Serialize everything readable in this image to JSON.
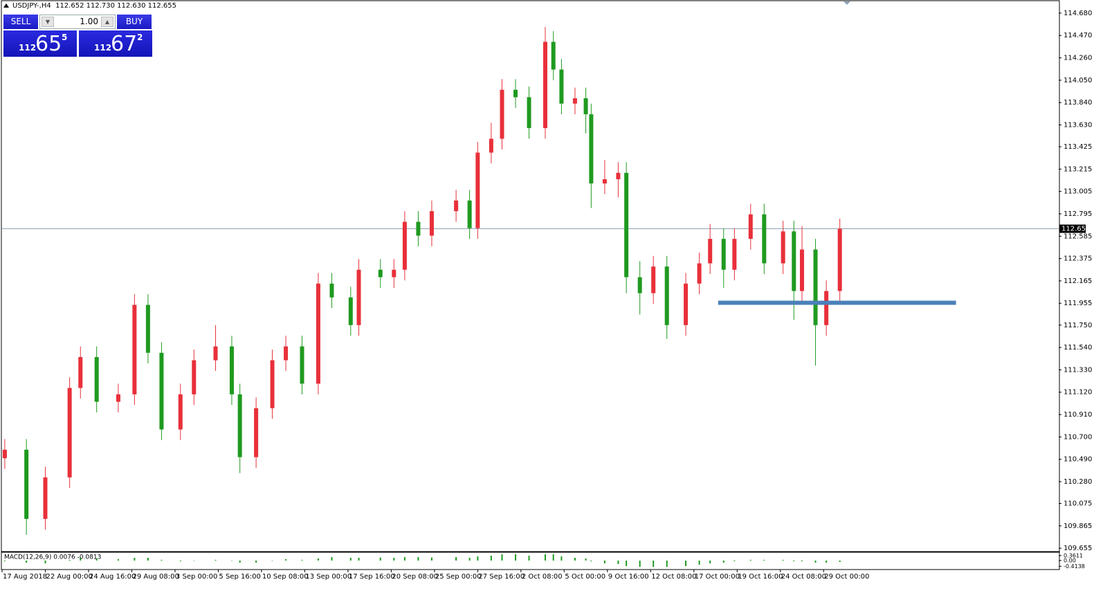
{
  "header": "USDJPY-,H4  112.652 112.730 112.630 112.655",
  "trade_panel": {
    "sell_label": "SELL",
    "lot": "1.00",
    "buy_label": "BUY",
    "bid": {
      "big": "112",
      "pips": "65",
      "frac": "5"
    },
    "ask": {
      "big": "112",
      "pips": "67",
      "frac": "2"
    }
  },
  "chart_data": [
    {
      "type": "candlestick",
      "x": [
        1,
        9,
        16,
        25,
        29,
        35,
        43,
        49,
        54,
        59,
        66,
        71,
        79,
        85,
        88,
        94,
        100,
        105,
        111,
        117,
        122,
        129,
        132,
        140,
        145,
        149,
        154,
        159,
        168,
        173,
        176,
        181,
        185,
        190,
        195,
        201,
        204,
        207,
        212,
        216,
        218,
        223,
        228,
        231,
        236,
        241,
        246,
        253,
        258,
        262,
        267,
        271,
        277,
        282,
        289,
        293,
        296,
        301,
        305,
        310
      ],
      "open": [
        110.5,
        110.58,
        109.93,
        110.32,
        111.16,
        111.45,
        111.03,
        111.1,
        111.94,
        111.49,
        110.77,
        111.1,
        111.42,
        111.55,
        111.1,
        110.51,
        110.97,
        111.42,
        111.55,
        111.2,
        112.14,
        112.01,
        111.75,
        112.27,
        112.2,
        112.27,
        112.72,
        112.59,
        112.82,
        112.92,
        112.66,
        113.37,
        113.5,
        113.96,
        113.89,
        113.6,
        114.41,
        114.15,
        113.83,
        113.88,
        113.73,
        113.08,
        113.12,
        113.18,
        112.2,
        112.05,
        112.3,
        111.75,
        112.14,
        112.33,
        112.56,
        112.27,
        112.56,
        112.79,
        112.33,
        112.63,
        112.07,
        112.46,
        111.75,
        112.07
      ],
      "high": [
        110.68,
        110.68,
        110.42,
        111.26,
        111.55,
        111.55,
        111.2,
        112.04,
        112.04,
        111.59,
        111.2,
        111.52,
        111.75,
        111.65,
        111.2,
        111.07,
        111.52,
        111.65,
        111.65,
        112.24,
        112.24,
        112.11,
        112.37,
        112.37,
        112.37,
        112.82,
        112.82,
        112.92,
        113.02,
        113.02,
        113.47,
        113.65,
        114.06,
        114.06,
        113.99,
        114.55,
        114.51,
        114.25,
        113.98,
        113.98,
        113.83,
        113.3,
        113.28,
        113.28,
        112.35,
        112.4,
        112.4,
        112.24,
        112.43,
        112.7,
        112.66,
        112.66,
        112.89,
        112.89,
        112.73,
        112.73,
        112.68,
        112.56,
        112.17,
        112.75
      ],
      "low": [
        110.4,
        109.78,
        109.83,
        110.22,
        111.06,
        110.93,
        110.93,
        111.0,
        111.39,
        110.67,
        110.67,
        111.0,
        111.32,
        111.0,
        110.36,
        110.41,
        110.87,
        111.32,
        111.1,
        111.1,
        111.91,
        111.65,
        111.65,
        112.1,
        112.1,
        112.17,
        112.49,
        112.49,
        112.72,
        112.56,
        112.56,
        113.27,
        113.4,
        113.79,
        113.5,
        113.5,
        114.05,
        113.73,
        113.73,
        113.55,
        112.85,
        112.98,
        112.95,
        112.05,
        111.85,
        111.95,
        111.62,
        111.65,
        112.04,
        112.23,
        112.1,
        112.17,
        112.46,
        112.23,
        112.23,
        111.8,
        111.97,
        111.37,
        111.65,
        111.97
      ],
      "close": [
        110.58,
        109.93,
        110.32,
        111.16,
        111.45,
        111.03,
        111.1,
        111.94,
        111.49,
        110.77,
        111.1,
        111.42,
        111.55,
        111.1,
        110.51,
        110.97,
        111.42,
        111.55,
        111.2,
        112.14,
        112.01,
        111.75,
        112.27,
        112.2,
        112.27,
        112.72,
        112.59,
        112.82,
        112.92,
        112.66,
        113.37,
        113.5,
        113.96,
        113.89,
        113.6,
        114.41,
        114.15,
        113.83,
        113.88,
        113.73,
        113.08,
        113.12,
        113.18,
        112.2,
        112.05,
        112.3,
        111.75,
        112.14,
        112.33,
        112.56,
        112.27,
        112.56,
        112.79,
        112.33,
        112.63,
        112.07,
        112.46,
        111.75,
        112.07,
        112.655
      ],
      "up_color": "#e8303a",
      "down_color": "#1f9a1f",
      "xlim": [
        0,
        391
      ],
      "xticks": [
        {
          "value": 0,
          "label": "17 Aug 2018"
        },
        {
          "value": 16,
          "label": "22 Aug 00:00"
        },
        {
          "value": 32,
          "label": "24 Aug 16:00"
        },
        {
          "value": 48,
          "label": "29 Aug 08:00"
        },
        {
          "value": 64,
          "label": "3 Sep 00:00"
        },
        {
          "value": 80,
          "label": "5 Sep 16:00"
        },
        {
          "value": 96,
          "label": "10 Sep 08:00"
        },
        {
          "value": 112,
          "label": "13 Sep 00:00"
        },
        {
          "value": 128,
          "label": "17 Sep 16:00"
        },
        {
          "value": 144,
          "label": "20 Sep 08:00"
        },
        {
          "value": 160,
          "label": "25 Sep 00:00"
        },
        {
          "value": 176,
          "label": "27 Sep 16:00"
        },
        {
          "value": 192,
          "label": "2 Oct 08:00"
        },
        {
          "value": 208,
          "label": "5 Oct 00:00"
        },
        {
          "value": 224,
          "label": "9 Oct 16:00"
        },
        {
          "value": 240,
          "label": "12 Oct 08:00"
        },
        {
          "value": 256,
          "label": "17 Oct 00:00"
        },
        {
          "value": 272,
          "label": "19 Oct 16:00"
        },
        {
          "value": 288,
          "label": "24 Oct 08:00"
        },
        {
          "value": 304,
          "label": "29 Oct 00:00"
        }
      ],
      "ylim": [
        109.63,
        114.79
      ],
      "yticks": [
        {
          "value": 114.68,
          "label": "114.680"
        },
        {
          "value": 114.47,
          "label": "114.470"
        },
        {
          "value": 114.26,
          "label": "114.260"
        },
        {
          "value": 114.05,
          "label": "114.050"
        },
        {
          "value": 113.84,
          "label": "113.840"
        },
        {
          "value": 113.63,
          "label": "113.630"
        },
        113.425,
        113.215,
        113.005,
        112.795,
        112.585,
        112.375,
        112.165,
        111.955,
        {
          "value": 111.75,
          "label": "111.750"
        },
        {
          "value": 111.54,
          "label": "111.540"
        },
        {
          "value": 111.33,
          "label": "111.330"
        },
        {
          "value": 111.12,
          "label": "111.120"
        },
        {
          "value": 110.91,
          "label": "110.910"
        },
        {
          "value": 110.7,
          "label": "110.700"
        },
        {
          "value": 110.49,
          "label": "110.490"
        },
        {
          "value": 110.28,
          "label": "110.280"
        },
        110.075,
        109.865,
        109.655
      ],
      "current_price": 112.655,
      "current_price_color": "#8fa3b5",
      "level_line": {
        "value": 111.96,
        "x": [
          265,
          353
        ],
        "color": "#4a80b8"
      }
    },
    {
      "type": "bar",
      "title": "MACD(12,26,9) 0.0076 -0.0813",
      "x": [
        1,
        9,
        16,
        25,
        29,
        35,
        43,
        49,
        54,
        59,
        66,
        71,
        79,
        85,
        88,
        94,
        100,
        105,
        111,
        117,
        122,
        129,
        132,
        140,
        145,
        149,
        154,
        159,
        168,
        173,
        176,
        181,
        185,
        190,
        195,
        201,
        204,
        207,
        212,
        216,
        218,
        223,
        228,
        231,
        236,
        241,
        246,
        253,
        258,
        262,
        267,
        271,
        277,
        282,
        289,
        293,
        296,
        301,
        305,
        310
      ],
      "values": [
        -0.05,
        -0.15,
        -0.2,
        0.05,
        0.2,
        0.15,
        0.1,
        0.2,
        0.2,
        0.05,
        -0.05,
        0.0,
        0.05,
        0.0,
        -0.15,
        -0.15,
        0.0,
        0.1,
        0.05,
        0.15,
        0.25,
        0.2,
        0.2,
        0.22,
        0.2,
        0.25,
        0.25,
        0.22,
        0.25,
        0.2,
        0.3,
        0.35,
        0.45,
        0.45,
        0.35,
        0.45,
        0.45,
        0.3,
        0.2,
        0.15,
        -0.05,
        -0.2,
        -0.25,
        -0.4,
        -0.45,
        -0.45,
        -0.45,
        -0.4,
        -0.3,
        -0.2,
        -0.15,
        -0.05,
        0.05,
        0.05,
        0.05,
        -0.05,
        -0.05,
        -0.15,
        -0.15,
        -0.1
      ],
      "color": "#1f9a1f",
      "xlim": [
        0,
        391
      ],
      "ylim": [
        -0.6,
        0.55
      ],
      "yticks": [
        0.3611,
        {
          "value": 0,
          "label": "0.00"
        },
        -0.4138
      ]
    }
  ]
}
